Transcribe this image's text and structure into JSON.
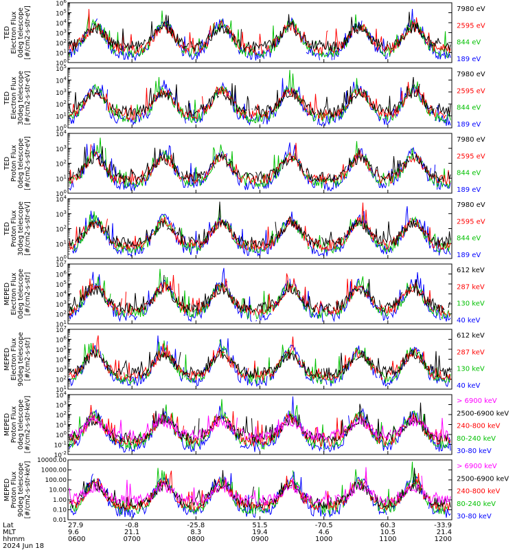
{
  "chart_data": [
    {
      "type": "line",
      "ylabel": [
        "TED",
        "Electron Flux",
        "0deg telescope",
        "[#/cm2-s-str-eV]"
      ],
      "ylim": [
        1,
        1000000
      ],
      "yscale": "log",
      "yticks": [
        "10^0",
        "10^1",
        "10^2",
        "10^3",
        "10^4",
        "10^5",
        "10^6"
      ],
      "series": [
        {
          "name": "7980 eV",
          "color": "#000000"
        },
        {
          "name": "2595 eV",
          "color": "#ff0000"
        },
        {
          "name": "844 eV",
          "color": "#00c000"
        },
        {
          "name": "189 eV",
          "color": "#0000ff"
        }
      ]
    },
    {
      "type": "line",
      "ylabel": [
        "TED",
        "Electron Flux",
        "30deg telescope",
        "[#/cm2-s-str-eV]"
      ],
      "ylim": [
        1,
        100000
      ],
      "yscale": "log",
      "yticks": [
        "10^0",
        "10^1",
        "10^2",
        "10^3",
        "10^4",
        "10^5"
      ],
      "series": [
        {
          "name": "7980 eV",
          "color": "#000000"
        },
        {
          "name": "2595 eV",
          "color": "#ff0000"
        },
        {
          "name": "844 eV",
          "color": "#00c000"
        },
        {
          "name": "189 eV",
          "color": "#0000ff"
        }
      ]
    },
    {
      "type": "line",
      "ylabel": [
        "TED",
        "Proton Flux",
        "0deg telescope",
        "[#/cm2-s-str-eV]"
      ],
      "ylim": [
        1,
        10000
      ],
      "yscale": "log",
      "yticks": [
        "10^0",
        "10^1",
        "10^2",
        "10^3",
        "10^4"
      ],
      "series": [
        {
          "name": "7980 eV",
          "color": "#000000"
        },
        {
          "name": "2595 eV",
          "color": "#ff0000"
        },
        {
          "name": "844 eV",
          "color": "#00c000"
        },
        {
          "name": "189 eV",
          "color": "#0000ff"
        }
      ]
    },
    {
      "type": "line",
      "ylabel": [
        "TED",
        "Proton Flux",
        "30deg telescope",
        "[#/cm2-s-str-eV]"
      ],
      "ylim": [
        1,
        10000
      ],
      "yscale": "log",
      "yticks": [
        "10^0",
        "10^1",
        "10^2",
        "10^3",
        "10^4"
      ],
      "series": [
        {
          "name": "7980 eV",
          "color": "#000000"
        },
        {
          "name": "2595 eV",
          "color": "#ff0000"
        },
        {
          "name": "844 eV",
          "color": "#00c000"
        },
        {
          "name": "189 eV",
          "color": "#0000ff"
        }
      ]
    },
    {
      "type": "line",
      "ylabel": [
        "MEPED",
        "Electron Flux",
        "0deg telescope",
        "[#/cm2-s-str]"
      ],
      "ylim": [
        10,
        10000000
      ],
      "yscale": "log",
      "yticks": [
        "10^1",
        "10^2",
        "10^3",
        "10^4",
        "10^5",
        "10^6",
        "10^7"
      ],
      "series": [
        {
          "name": "612 keV",
          "color": "#000000"
        },
        {
          "name": "287 keV",
          "color": "#ff0000"
        },
        {
          "name": "130 keV",
          "color": "#00c000"
        },
        {
          "name": "40 keV",
          "color": "#0000ff"
        }
      ]
    },
    {
      "type": "line",
      "ylabel": [
        "MEPED",
        "Electron Flux",
        "90deg telescope",
        "[#/cm2-s-str]"
      ],
      "ylim": [
        10,
        10000000
      ],
      "yscale": "log",
      "yticks": [
        "10^1",
        "10^2",
        "10^3",
        "10^4",
        "10^5",
        "10^6",
        "10^7"
      ],
      "series": [
        {
          "name": "612 keV",
          "color": "#000000"
        },
        {
          "name": "287 keV",
          "color": "#ff0000"
        },
        {
          "name": "130 keV",
          "color": "#00c000"
        },
        {
          "name": "40 keV",
          "color": "#0000ff"
        }
      ]
    },
    {
      "type": "line",
      "ylabel": [
        "MEPED",
        "Proton Flux",
        "0deg telescope",
        "[#/cm2-s-str-keV]"
      ],
      "ylim": [
        0.01,
        10000
      ],
      "yscale": "log",
      "yticks": [
        "10^-2",
        "10^-1",
        "10^0",
        "10^1",
        "10^2",
        "10^3",
        "10^4"
      ],
      "series": [
        {
          "name": "> 6900 keV",
          "color": "#ff00ff"
        },
        {
          "name": "2500-6900 keV",
          "color": "#000000"
        },
        {
          "name": "240-800 keV",
          "color": "#ff0000"
        },
        {
          "name": "80-240 keV",
          "color": "#00c000"
        },
        {
          "name": "30-80 keV",
          "color": "#0000ff"
        }
      ]
    },
    {
      "type": "line",
      "ylabel": [
        "MEPED",
        "Proton Flux",
        "90deg telescope",
        "[#/cm2-s-str-keV]"
      ],
      "ylim": [
        0.01,
        10000
      ],
      "yscale": "log",
      "yticks": [
        "10000.00",
        "1000.00",
        "100.00",
        "10.00",
        "1.00",
        "0.10",
        "0.01"
      ],
      "series": [
        {
          "name": "> 6900 keV",
          "color": "#ff00ff"
        },
        {
          "name": "2500-6900 keV",
          "color": "#000000"
        },
        {
          "name": "240-800 keV",
          "color": "#ff0000"
        },
        {
          "name": "80-240 keV",
          "color": "#00c000"
        },
        {
          "name": "30-80 keV",
          "color": "#0000ff"
        }
      ]
    }
  ],
  "x_axis": {
    "row_labels": [
      "Lat",
      "MLT",
      "hhmm",
      "2024 Jun 18"
    ],
    "ticks": [
      {
        "lat": "27.9",
        "mlt": "9.6",
        "hhmm": "0600"
      },
      {
        "lat": "-0.8",
        "mlt": "21.1",
        "hhmm": "0700"
      },
      {
        "lat": "-25.8",
        "mlt": "8.3",
        "hhmm": "0800"
      },
      {
        "lat": "51.5",
        "mlt": "19.4",
        "hhmm": "0900"
      },
      {
        "lat": "-70.5",
        "mlt": "4.6",
        "hhmm": "1000"
      },
      {
        "lat": "60.3",
        "mlt": "10.5",
        "hhmm": "1100"
      },
      {
        "lat": "-33.9",
        "mlt": "21.4",
        "hhmm": "1200"
      }
    ]
  }
}
